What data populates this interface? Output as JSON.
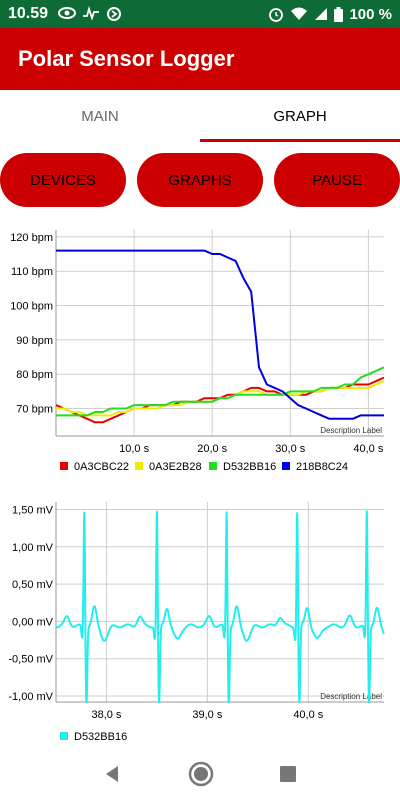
{
  "status_bar": {
    "time": "10.59",
    "battery": "100 %"
  },
  "app": {
    "title": "Polar Sensor Logger"
  },
  "tabs": [
    {
      "label": "MAIN"
    },
    {
      "label": "GRAPH"
    }
  ],
  "buttons": {
    "devices": "DEVICES",
    "graphs": "GRAPHS",
    "pause": "PAUSE"
  },
  "colors": {
    "accent": "#cc0000",
    "status": "#0e6b35"
  },
  "chart_data": [
    {
      "type": "line",
      "title": "",
      "description_label": "Description Label",
      "xlim": [
        0,
        42
      ],
      "ylim": [
        62,
        122
      ],
      "y_ticks": [
        70,
        80,
        90,
        100,
        110,
        120
      ],
      "y_tick_labels": [
        "70 bpm",
        "80 bpm",
        "90 bpm",
        "100 bpm",
        "110 bpm",
        "120 bpm"
      ],
      "x_ticks": [
        10,
        20,
        30,
        40
      ],
      "x_tick_labels": [
        "10,0 s",
        "20,0 s",
        "30,0 s",
        "40,0 s"
      ],
      "legend_position": "bottom-left",
      "series": [
        {
          "name": "0A3CBC22",
          "color": "#ee0000",
          "x": [
            0,
            1,
            2,
            3,
            4,
            5,
            6,
            7,
            8,
            9,
            10,
            11,
            12,
            13,
            14,
            15,
            16,
            17,
            18,
            19,
            20,
            21,
            22,
            23,
            24,
            25,
            26,
            27,
            28,
            29,
            30,
            31,
            32,
            33,
            34,
            35,
            36,
            37,
            38,
            39,
            40,
            41,
            42
          ],
          "y": [
            71,
            70,
            69,
            68,
            67,
            66,
            66,
            67,
            68,
            69,
            70,
            70,
            71,
            71,
            71,
            71,
            72,
            72,
            72,
            73,
            73,
            73,
            74,
            74,
            75,
            76,
            76,
            75,
            75,
            74,
            74,
            74,
            74,
            75,
            75,
            76,
            76,
            76,
            77,
            77,
            77,
            78,
            79
          ]
        },
        {
          "name": "0A3E2B28",
          "color": "#eeee00",
          "x": [
            0,
            1,
            2,
            3,
            4,
            5,
            6,
            7,
            8,
            9,
            10,
            11,
            12,
            13,
            14,
            15,
            16,
            17,
            18,
            19,
            20,
            21,
            22,
            23,
            24,
            25,
            26,
            27,
            28,
            29,
            30,
            31,
            32,
            33,
            34,
            35,
            36,
            37,
            38,
            39,
            40,
            41,
            42
          ],
          "y": [
            70,
            70,
            69,
            69,
            68,
            68,
            68,
            68,
            69,
            69,
            70,
            70,
            70,
            70,
            71,
            71,
            71,
            72,
            72,
            72,
            72,
            73,
            73,
            74,
            75,
            75,
            75,
            74,
            74,
            74,
            74,
            74,
            75,
            75,
            75,
            76,
            76,
            76,
            76,
            76,
            76,
            77,
            78
          ]
        },
        {
          "name": "D532BB16",
          "color": "#22dd22",
          "x": [
            0,
            1,
            2,
            3,
            4,
            5,
            6,
            7,
            8,
            9,
            10,
            11,
            12,
            13,
            14,
            15,
            16,
            17,
            18,
            19,
            20,
            21,
            22,
            23,
            24,
            25,
            26,
            27,
            28,
            29,
            30,
            31,
            32,
            33,
            34,
            35,
            36,
            37,
            38,
            39,
            40,
            41,
            42
          ],
          "y": [
            68,
            68,
            68,
            68,
            68,
            69,
            69,
            70,
            70,
            70,
            71,
            71,
            71,
            71,
            71,
            72,
            72,
            72,
            72,
            72,
            72,
            73,
            73,
            74,
            74,
            74,
            74,
            74,
            74,
            74,
            75,
            75,
            75,
            75,
            76,
            76,
            76,
            77,
            77,
            79,
            80,
            81,
            82
          ]
        },
        {
          "name": "218B8C24",
          "color": "#0000dd",
          "x": [
            0,
            2,
            4,
            6,
            8,
            10,
            12,
            14,
            16,
            18,
            19,
            20,
            21,
            22,
            23,
            24,
            25,
            26,
            27,
            28,
            29,
            30,
            31,
            32,
            33,
            34,
            35,
            36,
            37,
            38,
            39,
            40,
            41,
            42
          ],
          "y": [
            116,
            116,
            116,
            116,
            116,
            116,
            116,
            116,
            116,
            116,
            116,
            115,
            115,
            114,
            113,
            108,
            104,
            82,
            77,
            76,
            75,
            73,
            71,
            70,
            69,
            68,
            67,
            67,
            67,
            67,
            68,
            68,
            68,
            68
          ]
        }
      ]
    },
    {
      "type": "line",
      "title": "",
      "description_label": "Description Label",
      "xlim": [
        37.5,
        40.75
      ],
      "ylim": [
        -1.08,
        1.6
      ],
      "y_ticks": [
        -1.0,
        -0.5,
        0.0,
        0.5,
        1.0,
        1.5
      ],
      "y_tick_labels": [
        "-1,00 mV",
        "-0,50 mV",
        "0,00 mV",
        "0,50 mV",
        "1,00 mV",
        "1,50 mV"
      ],
      "x_ticks": [
        38,
        39,
        40
      ],
      "x_tick_labels": [
        "38,0 s",
        "39,0 s",
        "40,0 s"
      ],
      "legend_position": "bottom-left",
      "beat_times": [
        37.78,
        38.5,
        39.19,
        39.89,
        40.58
      ],
      "series": [
        {
          "name": "D532BB16",
          "color": "#22eeee"
        }
      ]
    }
  ]
}
